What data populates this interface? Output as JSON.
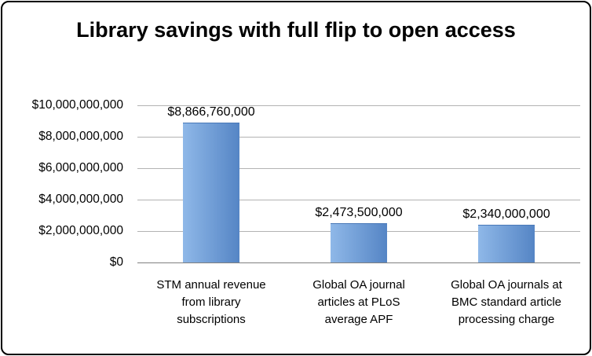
{
  "frame": {
    "background_color": "#ffffff",
    "border_color": "#000000"
  },
  "chart_data": {
    "type": "bar",
    "title": "Library savings with full flip to open access",
    "categories": [
      "STM annual revenue from library subscriptions",
      "Global OA journal articles at PLoS average APF",
      "Global OA journals at BMC standard article processing charge"
    ],
    "values": [
      8866760000,
      2473500000,
      2340000000
    ],
    "value_labels": [
      "$8,866,760,000",
      "$2,473,500,000",
      "$2,340,000,000"
    ],
    "y_ticks": [
      "$10,000,000,000",
      "$8,000,000,000",
      "$6,000,000,000",
      "$4,000,000,000",
      "$2,000,000,000",
      "$0"
    ],
    "y_tick_values": [
      10000000000,
      8000000000,
      6000000000,
      4000000000,
      2000000000,
      0
    ],
    "ylim": [
      0,
      10000000000
    ],
    "xlabel": "",
    "ylabel": "",
    "grid": true,
    "legend": "none",
    "gridline_color": "#b3b3b3",
    "axis_line_color": "#7f7f7f",
    "bar_gradient": [
      "#8fb8e8",
      "#5585c5"
    ],
    "bar_border_color": "#4a79b8"
  }
}
